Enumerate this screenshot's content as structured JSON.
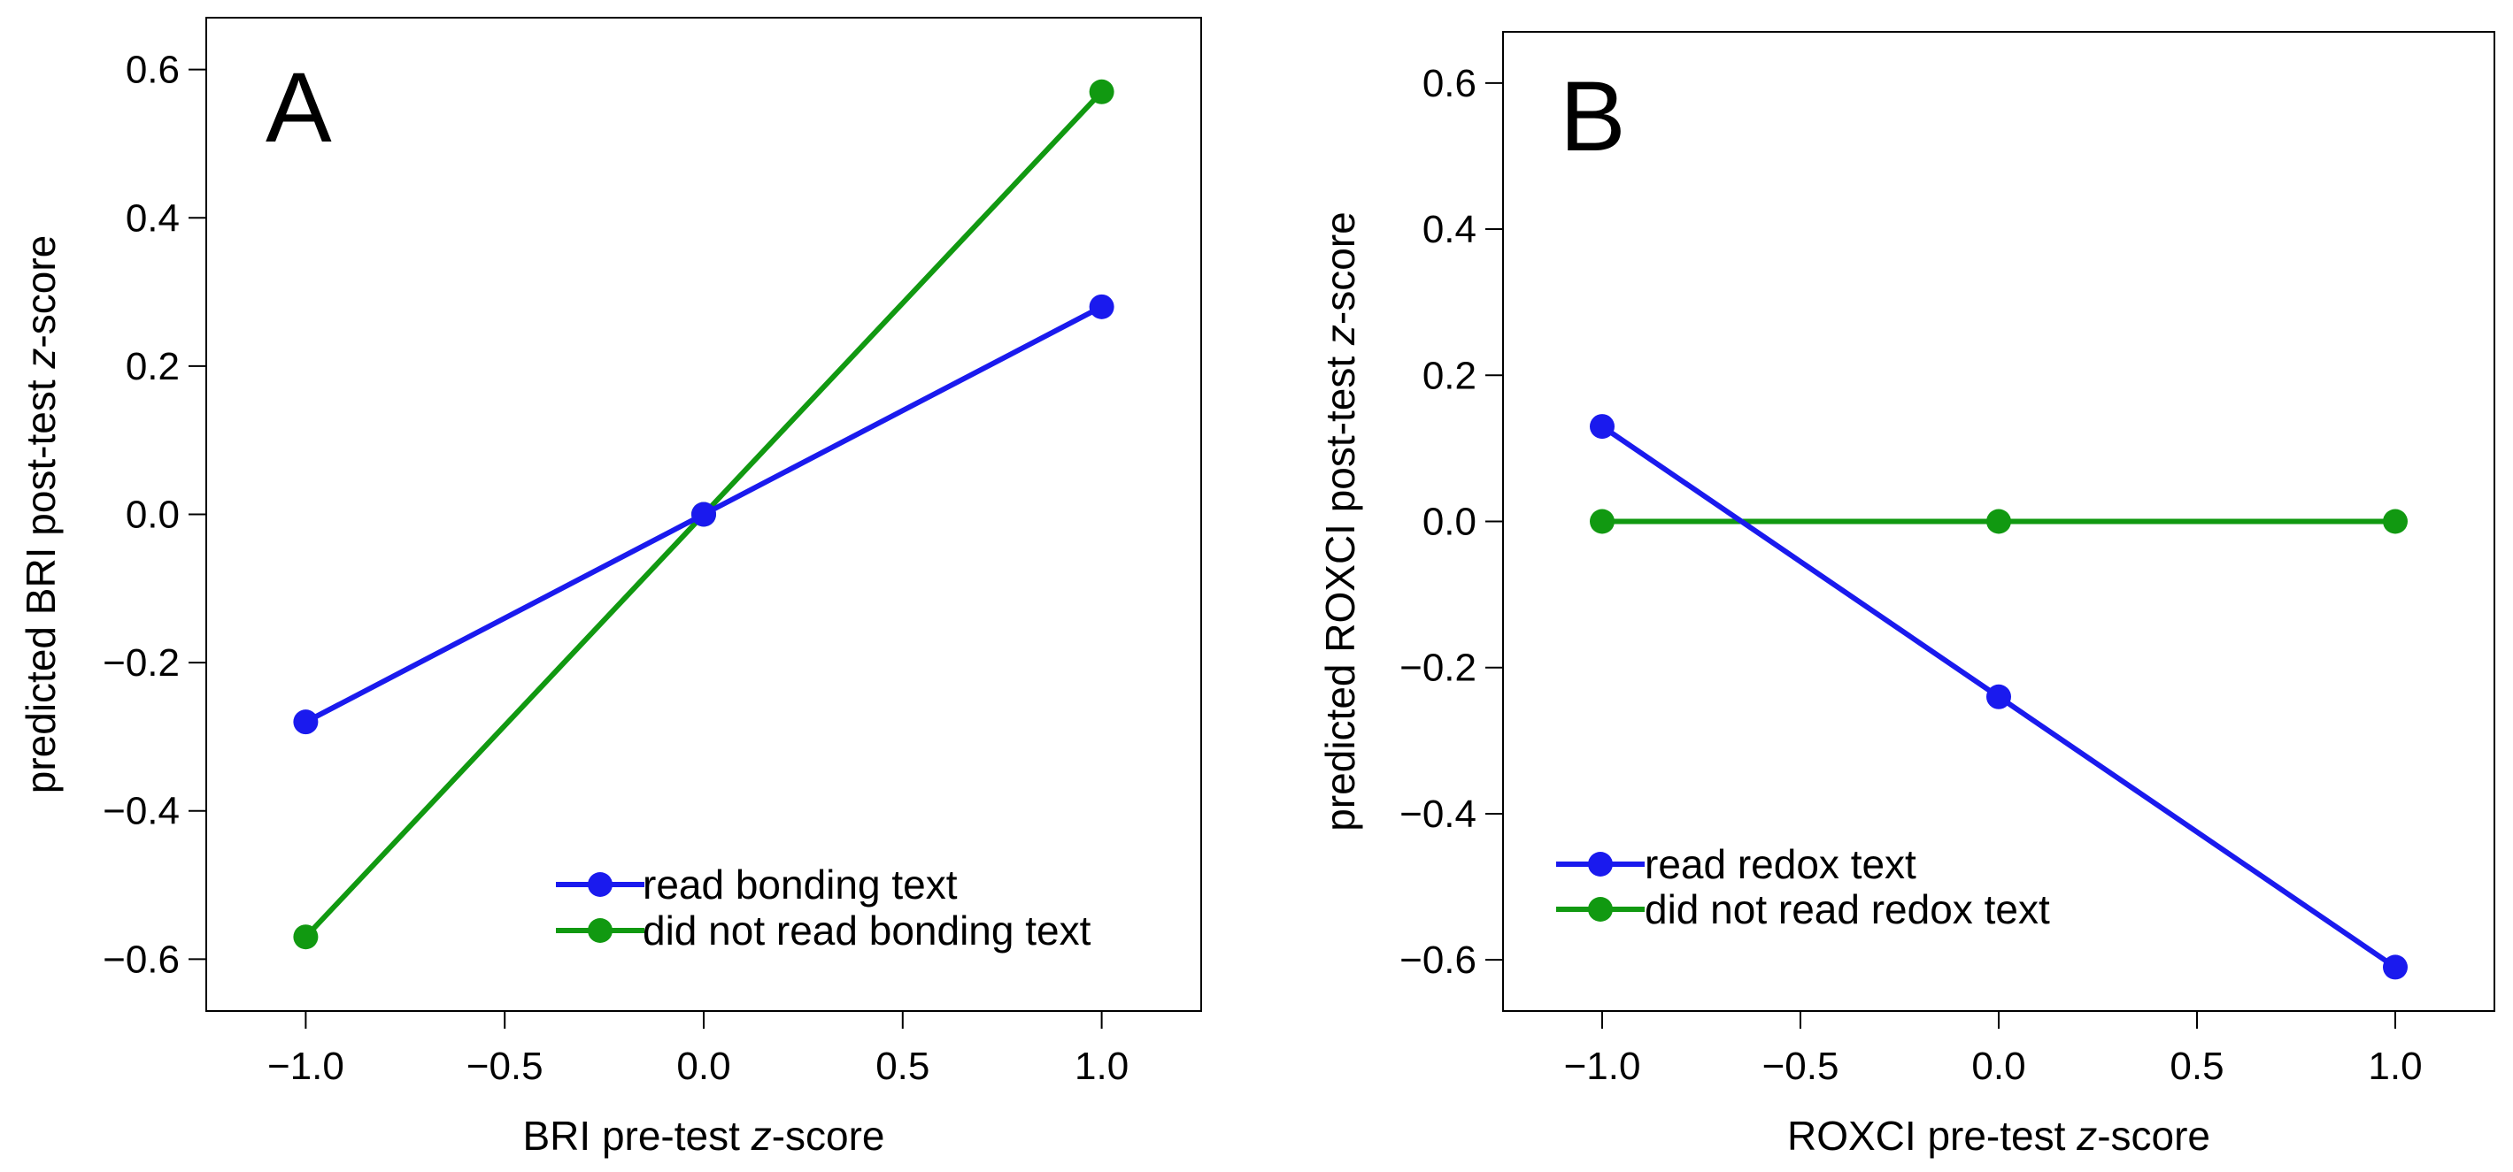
{
  "chart_data": [
    {
      "type": "line",
      "panel_label": "A",
      "xlabel_prefix": "BRI pre-test ",
      "xlabel_italic": "z",
      "xlabel_suffix": "-score",
      "ylabel_prefix": "predicted BRI post-test ",
      "ylabel_italic": "z",
      "ylabel_suffix": "-score",
      "xlim": [
        -1.25,
        1.25
      ],
      "ylim": [
        -0.67,
        0.67
      ],
      "xticks": [
        -1.0,
        -0.5,
        0.0,
        0.5,
        1.0
      ],
      "xtick_labels": [
        "−1.0",
        "−0.5",
        "0.0",
        "0.5",
        "1.0"
      ],
      "yticks": [
        -0.6,
        -0.4,
        -0.2,
        0.0,
        0.2,
        0.4,
        0.6
      ],
      "ytick_labels": [
        "−0.6",
        "−0.4",
        "−0.2",
        "0.0",
        "0.2",
        "0.4",
        "0.6"
      ],
      "legend_position": "bottom-right",
      "series": [
        {
          "name": "did not read bonding text",
          "color": "#119911",
          "x": [
            -1.0,
            0.0,
            1.0
          ],
          "y": [
            -0.57,
            0.0,
            0.57
          ]
        },
        {
          "name": "read bonding text",
          "color": "#1a1aee",
          "x": [
            -1.0,
            0.0,
            1.0
          ],
          "y": [
            -0.28,
            0.0,
            0.28
          ]
        }
      ],
      "legend_order": [
        1,
        0
      ]
    },
    {
      "type": "line",
      "panel_label": "B",
      "xlabel_prefix": "ROXCI pre-test ",
      "xlabel_italic": "z",
      "xlabel_suffix": "-score",
      "ylabel_prefix": "predicted ROXCI post-test ",
      "ylabel_italic": "z",
      "ylabel_suffix": "-score",
      "xlim": [
        -1.25,
        1.25
      ],
      "ylim": [
        -0.67,
        0.67
      ],
      "xticks": [
        -1.0,
        -0.5,
        0.0,
        0.5,
        1.0
      ],
      "xtick_labels": [
        "−1.0",
        "−0.5",
        "0.0",
        "0.5",
        "1.0"
      ],
      "yticks": [
        -0.6,
        -0.4,
        -0.2,
        0.0,
        0.2,
        0.4,
        0.6
      ],
      "ytick_labels": [
        "−0.6",
        "−0.4",
        "−0.2",
        "0.0",
        "0.2",
        "0.4",
        "0.6"
      ],
      "legend_position": "bottom-left",
      "series": [
        {
          "name": "did not read redox text",
          "color": "#119911",
          "x": [
            -1.0,
            0.0,
            1.0
          ],
          "y": [
            0.0,
            0.0,
            0.0
          ]
        },
        {
          "name": "read redox text",
          "color": "#1a1aee",
          "x": [
            -1.0,
            0.0,
            1.0
          ],
          "y": [
            0.13,
            -0.24,
            -0.61
          ]
        }
      ],
      "legend_order": [
        1,
        0
      ]
    }
  ]
}
